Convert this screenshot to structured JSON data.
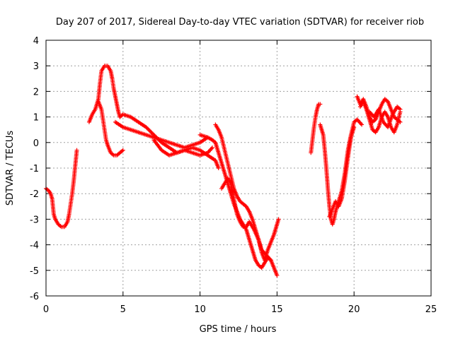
{
  "chart_data": {
    "type": "scatter",
    "title": "Day 207 of 2017, Sidereal Day-to-day VTEC variation (SDTVAR) for receiver riob",
    "xlabel": "GPS time / hours",
    "ylabel": "SDTVAR / TECUs",
    "xlim": [
      0,
      25
    ],
    "ylim": [
      -6,
      4
    ],
    "xticks": [
      0,
      5,
      10,
      15,
      20,
      25
    ],
    "yticks": [
      -6,
      -5,
      -4,
      -3,
      -2,
      -1,
      0,
      1,
      2,
      3,
      4
    ],
    "grid": true,
    "marker": "+",
    "series": [
      {
        "name": "SDTVAR",
        "color": "#ff0000",
        "segments": [
          {
            "x": [
              0.0,
              0.2,
              0.3,
              0.4,
              0.5,
              0.6,
              0.8,
              1.0,
              1.2,
              1.4,
              1.5,
              1.6,
              1.7,
              1.8,
              1.9,
              2.0
            ],
            "y": [
              -1.8,
              -1.9,
              -2.0,
              -2.2,
              -2.8,
              -3.0,
              -3.2,
              -3.3,
              -3.3,
              -3.1,
              -2.8,
              -2.4,
              -2.0,
              -1.5,
              -0.9,
              -0.3
            ]
          },
          {
            "x": [
              2.8,
              3.0,
              3.2,
              3.4,
              3.5,
              3.6,
              3.8,
              4.0,
              4.2,
              4.3,
              4.4,
              4.5,
              4.6,
              4.7,
              4.8
            ],
            "y": [
              0.8,
              1.1,
              1.3,
              1.7,
              2.3,
              2.8,
              3.0,
              3.0,
              2.8,
              2.5,
              2.1,
              1.8,
              1.5,
              1.2,
              1.0
            ]
          },
          {
            "x": [
              3.4,
              3.6,
              3.7,
              3.8,
              3.9,
              4.0,
              4.2,
              4.4,
              4.6,
              4.8,
              5.0
            ],
            "y": [
              1.6,
              1.3,
              0.9,
              0.5,
              0.1,
              -0.1,
              -0.4,
              -0.5,
              -0.5,
              -0.4,
              -0.3
            ]
          },
          {
            "x": [
              4.8,
              5.0,
              5.5,
              6.0,
              6.5,
              7.0,
              7.5,
              8.0,
              8.5,
              9.0,
              9.5,
              10.0,
              10.5,
              11.0,
              11.2
            ],
            "y": [
              1.0,
              1.1,
              1.0,
              0.8,
              0.6,
              0.3,
              0.0,
              -0.2,
              -0.4,
              -0.3,
              -0.2,
              -0.3,
              -0.5,
              -0.7,
              -1.0
            ]
          },
          {
            "x": [
              4.5,
              5.0,
              5.5,
              6.0,
              6.5,
              7.0,
              7.5,
              8.0,
              8.5,
              9.0,
              9.5,
              10.0,
              10.5
            ],
            "y": [
              0.8,
              0.6,
              0.5,
              0.4,
              0.3,
              0.2,
              0.1,
              0.0,
              -0.1,
              -0.2,
              -0.1,
              0.0,
              0.2
            ]
          },
          {
            "x": [
              7.0,
              7.5,
              8.0,
              8.5,
              9.0,
              9.5,
              10.0,
              10.5,
              10.8
            ],
            "y": [
              0.1,
              -0.3,
              -0.5,
              -0.4,
              -0.3,
              -0.4,
              -0.5,
              -0.4,
              -0.2
            ]
          },
          {
            "x": [
              10.0,
              10.5,
              10.8,
              11.0,
              11.2,
              11.4,
              11.5,
              11.7,
              11.8,
              12.0,
              12.2,
              12.4,
              12.6,
              12.8,
              13.0,
              13.2,
              13.4,
              13.6,
              13.8,
              14.0,
              14.2,
              14.4,
              14.6,
              14.8,
              15.0
            ],
            "y": [
              0.3,
              0.2,
              0.1,
              0.0,
              -0.4,
              -0.8,
              -1.0,
              -1.4,
              -1.6,
              -2.0,
              -2.4,
              -2.7,
              -3.0,
              -3.2,
              -3.4,
              -3.8,
              -4.2,
              -4.6,
              -4.8,
              -4.9,
              -4.7,
              -4.5,
              -4.6,
              -4.9,
              -5.2
            ]
          },
          {
            "x": [
              11.0,
              11.2,
              11.4,
              11.6,
              11.8,
              12.0,
              12.2,
              12.4,
              12.6,
              12.8,
              13.0,
              13.2,
              13.4,
              13.6,
              13.8,
              14.0,
              14.2,
              14.4,
              14.6,
              14.8,
              15.0,
              15.1
            ],
            "y": [
              0.7,
              0.5,
              0.2,
              -0.3,
              -0.8,
              -1.3,
              -1.8,
              -2.1,
              -2.3,
              -2.4,
              -2.5,
              -2.7,
              -3.0,
              -3.4,
              -3.8,
              -4.3,
              -4.6,
              -4.2,
              -3.9,
              -3.6,
              -3.2,
              -3.0
            ]
          },
          {
            "x": [
              11.4,
              11.6,
              11.8,
              12.0,
              12.2,
              12.4,
              12.6,
              12.8,
              13.0,
              13.2,
              13.5,
              13.8,
              14.0,
              14.3,
              14.6
            ],
            "y": [
              -1.8,
              -1.6,
              -1.4,
              -1.6,
              -2.2,
              -2.8,
              -3.1,
              -3.3,
              -3.3,
              -3.1,
              -3.4,
              -3.8,
              -4.2,
              -4.4,
              -4.6
            ]
          },
          {
            "x": [
              17.2,
              17.3,
              17.4,
              17.5,
              17.6,
              17.7,
              17.8
            ],
            "y": [
              -0.4,
              0.1,
              0.6,
              1.0,
              1.3,
              1.5,
              1.5
            ]
          },
          {
            "x": [
              17.8,
              18.0,
              18.1,
              18.2,
              18.3,
              18.4,
              18.5,
              18.6,
              18.7,
              18.8,
              19.0,
              19.2,
              19.4,
              19.6,
              19.8,
              20.0,
              20.2,
              20.5
            ],
            "y": [
              0.7,
              0.3,
              -0.3,
              -1.0,
              -1.8,
              -2.5,
              -3.0,
              -3.2,
              -3.0,
              -2.7,
              -2.3,
              -1.9,
              -1.2,
              -0.3,
              0.3,
              0.8,
              0.9,
              0.7
            ]
          },
          {
            "x": [
              18.4,
              18.6,
              18.8,
              19.0,
              19.2,
              19.4,
              19.6,
              19.8,
              20.0
            ],
            "y": [
              -2.9,
              -2.6,
              -2.3,
              -2.5,
              -2.2,
              -1.5,
              -0.6,
              0.2,
              0.6
            ]
          },
          {
            "x": [
              20.2,
              20.4,
              20.6,
              20.8,
              21.0,
              21.2,
              21.4,
              21.6,
              21.8,
              22.0,
              22.2,
              22.4,
              22.6,
              22.8,
              23.0
            ],
            "y": [
              1.8,
              1.5,
              1.7,
              1.4,
              1.0,
              0.8,
              0.9,
              1.2,
              1.5,
              1.7,
              1.6,
              1.3,
              1.0,
              0.9,
              0.8
            ]
          },
          {
            "x": [
              20.4,
              20.6,
              20.8,
              21.0,
              21.2,
              21.4,
              21.6,
              21.8,
              22.0,
              22.2,
              22.4,
              22.6,
              22.8,
              23.0
            ],
            "y": [
              1.4,
              1.6,
              1.3,
              0.9,
              0.5,
              0.4,
              0.6,
              1.0,
              1.2,
              1.0,
              0.6,
              0.4,
              0.7,
              1.2
            ]
          },
          {
            "x": [
              21.0,
              21.3,
              21.6,
              21.9,
              22.2,
              22.5,
              22.8,
              23.0
            ],
            "y": [
              1.2,
              1.0,
              1.3,
              0.8,
              0.6,
              1.1,
              1.4,
              1.3
            ]
          }
        ]
      }
    ]
  }
}
